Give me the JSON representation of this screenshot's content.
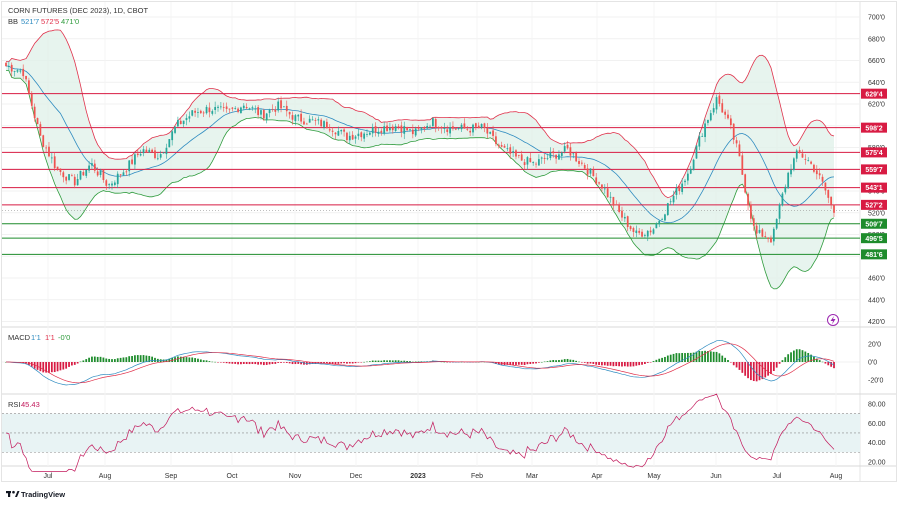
{
  "header": {
    "title": "CORN FUTURES (DEC 2023), 1D, CBOT",
    "bb_label": "BB",
    "bb_values": [
      "521'7",
      "572'5",
      "471'0"
    ],
    "bb_colors": [
      "#2e8bc0",
      "#e0314b",
      "#2e9b3c"
    ]
  },
  "price_axis": {
    "ticks": [
      "700'0",
      "680'0",
      "660'0",
      "640'0",
      "620'0",
      "600'0",
      "580'0",
      "560'0",
      "540'0",
      "520'0",
      "500'0",
      "480'0",
      "460'0",
      "440'0",
      "420'0"
    ]
  },
  "levels": [
    {
      "label": "629'4",
      "color": "#d81b43",
      "price": 629.5
    },
    {
      "label": "598'2",
      "color": "#d81b43",
      "price": 598.25
    },
    {
      "label": "575'4",
      "color": "#d81b43",
      "price": 575.5
    },
    {
      "label": "559'7",
      "color": "#d81b43",
      "price": 559.875
    },
    {
      "label": "543'1",
      "color": "#d81b43",
      "price": 543.125
    },
    {
      "label": "527'2",
      "color": "#d81b43",
      "price": 527.25
    },
    {
      "label": "509'7",
      "color": "#1e8c2c",
      "price": 509.875
    },
    {
      "label": "496'5",
      "color": "#1e8c2c",
      "price": 496.625
    },
    {
      "label": "481'6",
      "color": "#1e8c2c",
      "price": 481.75
    }
  ],
  "time_axis": {
    "labels": [
      "Jul",
      "Aug",
      "Sep",
      "Oct",
      "Nov",
      "Dec",
      "2023",
      "Feb",
      "Mar",
      "Apr",
      "May",
      "Jun",
      "Jul",
      "Aug"
    ]
  },
  "macd": {
    "label": "MACD",
    "values": [
      "1'1",
      "1'1",
      "-0'0"
    ],
    "colors": [
      "#2e8bc0",
      "#e0314b",
      "#2e9b3c"
    ],
    "ticks": [
      "20'0",
      "0'0",
      "-20'0"
    ]
  },
  "rsi": {
    "label": "RSI",
    "value": "45.43",
    "ticks": [
      "80.00",
      "60.00",
      "40.00",
      "20.00"
    ],
    "line_color": "#c2185b"
  },
  "footer": {
    "brand": "TradingView"
  },
  "colors": {
    "up": "#26a69a",
    "down": "#ef5350",
    "band_fill": "#dff0e8",
    "hist_up": "#1e8c2c",
    "hist_down": "#d81b43"
  },
  "chart_data": {
    "type": "candlestick",
    "title": "CORN FUTURES (DEC 2023), 1D, CBOT",
    "x_range": [
      "2022-06",
      "2023-08"
    ],
    "y_range": [
      420,
      700
    ],
    "price_path": [
      {
        "month": "Jun 2022",
        "value": 655
      },
      {
        "month": "Jul 2022",
        "value": 570
      },
      {
        "month": "Jul 2022 (late)",
        "value": 545
      },
      {
        "month": "Aug 2022",
        "value": 575
      },
      {
        "month": "Sep 2022",
        "value": 615
      },
      {
        "month": "Oct 2022",
        "value": 618
      },
      {
        "month": "Nov 2022",
        "value": 610
      },
      {
        "month": "Dec 2022",
        "value": 600
      },
      {
        "month": "Jan 2023",
        "value": 597
      },
      {
        "month": "Feb 2023",
        "value": 598
      },
      {
        "month": "Mar 2023",
        "value": 560
      },
      {
        "month": "Apr 2023",
        "value": 570
      },
      {
        "month": "May 2023",
        "value": 505
      },
      {
        "month": "Jun 2023",
        "value": 625
      },
      {
        "month": "Jul 2023",
        "value": 495
      },
      {
        "month": "Jul 2023 (late)",
        "value": 575
      },
      {
        "month": "Aug 2023",
        "value": 521
      }
    ],
    "indicators": [
      "Bollinger Bands",
      "MACD",
      "RSI"
    ]
  }
}
